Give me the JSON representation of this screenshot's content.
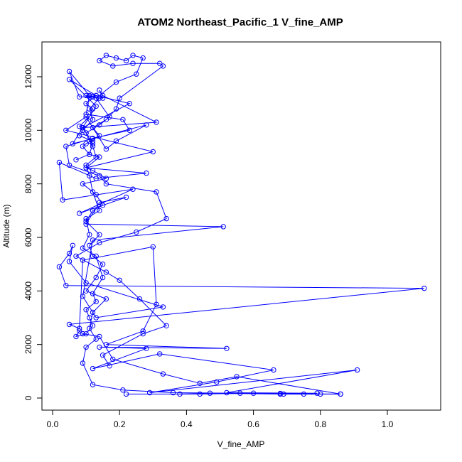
{
  "chart_data": {
    "type": "line",
    "title": "ATOM2 Northeast_Pacific_1 V_fine_AMP",
    "xlabel": "V_fine_AMP",
    "ylabel": "Altitude (m)",
    "xlim": [
      0.0,
      1.1
    ],
    "ylim": [
      0,
      12000
    ],
    "xticks": [
      0.0,
      0.2,
      0.4,
      0.6,
      0.8,
      1.0
    ],
    "yticks": [
      0,
      2000,
      4000,
      6000,
      8000,
      10000,
      12000
    ],
    "xtick_labels": [
      "0.0",
      "0.2",
      "0.4",
      "0.6",
      "0.8",
      "1.0"
    ],
    "ytick_labels": [
      "0",
      "2000",
      "4000",
      "6000",
      "8000",
      "10000",
      "12000"
    ],
    "marker": "open-circle",
    "color": "#0000ff",
    "grid": false,
    "series": [
      {
        "x": [
          0.86,
          0.68,
          0.79,
          0.52,
          0.91,
          0.29,
          0.49,
          0.66,
          0.32,
          0.12,
          0.28,
          0.14,
          0.52,
          0.16,
          0.27,
          0.31,
          0.3,
          0.09,
          0.08,
          0.05,
          1.11,
          0.04,
          0.02,
          0.05,
          0.06,
          0.05,
          0.1,
          0.33,
          0.13,
          0.09,
          0.12,
          0.51,
          0.1,
          0.14,
          0.22,
          0.08,
          0.24,
          0.03,
          0.02,
          0.13,
          0.28,
          0.1,
          0.3,
          0.04,
          0.1,
          0.16,
          0.19,
          0.28,
          0.06,
          0.13,
          0.05,
          0.13,
          0.23,
          0.09,
          0.31,
          0.15,
          0.14,
          0.15,
          0.12,
          0.08,
          0.05,
          0.11,
          0.1,
          0.21,
          0.23,
          0.12,
          0.04,
          0.05,
          0.14,
          0.16,
          0.31,
          0.34,
          0.25,
          0.14,
          0.07,
          0.16,
          0.2,
          0.26,
          0.34,
          0.27,
          0.15,
          0.17
        ],
        "y": [
          150,
          150,
          180,
          200,
          1050,
          200,
          600,
          1050,
          1650,
          1100,
          1850,
          1900,
          1850,
          2000,
          2500,
          3500,
          5650,
          5150,
          2600,
          2750,
          4100,
          4200,
          4900,
          5400,
          5700,
          5100,
          4300,
          3400,
          3000,
          3800,
          5900,
          6400,
          6500,
          7300,
          7500,
          6900,
          7800,
          7400,
          8800,
          8200,
          8400,
          8600,
          9200,
          10000,
          10500,
          9300,
          9600,
          10200,
          9500,
          10900,
          11900,
          11300,
          11000,
          10100,
          10300,
          11300,
          11500,
          11200,
          11250,
          11250,
          12200,
          11300,
          10600,
          10400,
          10000,
          9700,
          9400,
          8700,
          8300,
          8000,
          7700,
          6700,
          6200,
          5800,
          5300,
          4700,
          4400,
          3700,
          2700,
          2400,
          1600,
          1200
        ]
      },
      {
        "x": [
          0.22,
          0.44,
          0.6,
          0.75,
          0.8,
          0.68,
          0.56,
          0.36,
          0.21,
          0.12,
          0.09,
          0.1,
          0.13,
          0.11,
          0.12,
          0.16,
          0.1,
          0.13,
          0.15,
          0.12,
          0.11,
          0.14,
          0.1,
          0.12,
          0.15,
          0.13,
          0.09,
          0.16,
          0.12,
          0.1,
          0.14,
          0.11,
          0.12,
          0.1,
          0.14,
          0.17,
          0.13,
          0.19,
          0.25,
          0.27,
          0.24,
          0.22,
          0.19,
          0.16,
          0.14,
          0.18,
          0.24,
          0.32,
          0.33,
          0.2,
          0.19,
          0.16,
          0.12,
          0.14,
          0.1,
          0.09,
          0.11,
          0.07
        ],
        "y": [
          150,
          150,
          180,
          150,
          150,
          170,
          180,
          200,
          300,
          500,
          1300,
          1900,
          2200,
          2600,
          3200,
          3700,
          4000,
          4500,
          5000,
          5300,
          5700,
          6100,
          6600,
          7000,
          7200,
          7600,
          8000,
          8200,
          8500,
          8600,
          9000,
          9100,
          9500,
          9900,
          10200,
          10500,
          11200,
          11800,
          12100,
          12700,
          12800,
          12600,
          12700,
          12800,
          12600,
          12400,
          12500,
          12500,
          12400,
          11200,
          10800,
          10400,
          10100,
          9800,
          9500,
          9400,
          9100,
          8900
        ]
      },
      {
        "x": [
          0.38,
          0.47,
          0.69,
          0.86,
          0.55,
          0.44,
          0.33,
          0.18,
          0.14,
          0.09,
          0.08,
          0.07,
          0.1,
          0.12,
          0.11,
          0.1,
          0.13,
          0.12,
          0.15,
          0.13,
          0.09,
          0.11,
          0.1,
          0.14,
          0.12,
          0.11,
          0.1,
          0.13,
          0.12,
          0.11,
          0.1,
          0.09,
          0.08,
          0.11,
          0.12,
          0.1,
          0.13,
          0.11,
          0.1,
          0.12,
          0.14,
          0.11,
          0.12,
          0.09,
          0.08,
          0.12
        ],
        "y": [
          150,
          180,
          150,
          150,
          800,
          550,
          900,
          1450,
          2300,
          2400,
          2500,
          2300,
          2400,
          2700,
          3000,
          3300,
          3600,
          3900,
          4500,
          5300,
          5600,
          6100,
          6700,
          7000,
          7700,
          8300,
          8700,
          9000,
          9400,
          9600,
          9900,
          10100,
          10150,
          10500,
          10800,
          11000,
          11300,
          11250,
          11300,
          11250,
          11200,
          10800,
          10400,
          10000,
          9800,
          9600
        ]
      }
    ]
  }
}
